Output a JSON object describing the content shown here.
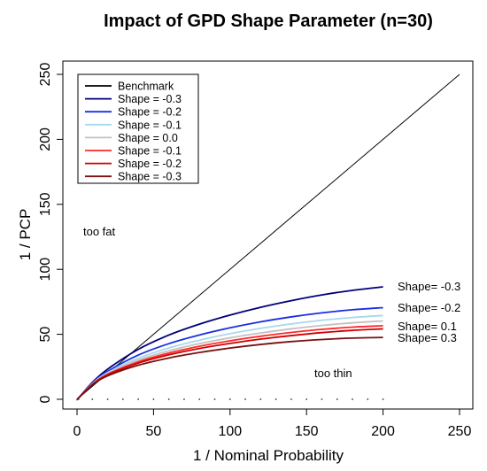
{
  "chart_data": {
    "type": "line",
    "title": "Impact of GPD Shape Parameter (n=30)",
    "xlabel": "1 / Nominal Probability",
    "ylabel": "1 / PCP",
    "xlim": [
      0,
      250
    ],
    "ylim": [
      0,
      250
    ],
    "xticks": [
      0,
      50,
      100,
      150,
      200,
      250
    ],
    "yticks": [
      0,
      50,
      100,
      150,
      200,
      250
    ],
    "grid": false,
    "legend_position": "top-left",
    "x_points": [
      0,
      1,
      10,
      20,
      40,
      60,
      80,
      100,
      120,
      140,
      160,
      180,
      200
    ],
    "benchmark": {
      "name": "Benchmark",
      "color": "#000000",
      "x": [
        0,
        250
      ],
      "values": [
        0,
        250
      ]
    },
    "series": [
      {
        "name": "Shape = -0.3",
        "color": "#00007a",
        "values": [
          0,
          1,
          13.0,
          23.2,
          38.4,
          49.4,
          57.8,
          64.8,
          70.8,
          75.9,
          80.3,
          83.8,
          86.5
        ]
      },
      {
        "name": "Shape = -0.2",
        "color": "#1a2fe0",
        "values": [
          0,
          1,
          12.5,
          21.5,
          34.0,
          42.8,
          49.5,
          55.0,
          59.6,
          63.4,
          66.5,
          68.9,
          70.5
        ]
      },
      {
        "name": "Shape = -0.1",
        "color": "#a8d8ee",
        "values": [
          0,
          1,
          12.0,
          20.5,
          31.5,
          39.5,
          45.5,
          50.5,
          54.6,
          58.0,
          60.8,
          62.9,
          64.5
        ]
      },
      {
        "name": "Shape =  0.0",
        "color": "#c2c2c2",
        "values": [
          0,
          1,
          11.8,
          19.8,
          30.0,
          37.3,
          42.8,
          47.3,
          51.0,
          54.2,
          56.8,
          58.8,
          60.3
        ]
      },
      {
        "name": "Shape = -0.1",
        "color": "#ff2a2a",
        "values": [
          0,
          1,
          11.5,
          19.2,
          28.8,
          35.6,
          40.8,
          45.0,
          48.5,
          51.4,
          53.8,
          55.5,
          56.6
        ]
      },
      {
        "name": "Shape = -0.2",
        "color": "#cc0000",
        "values": [
          0,
          1,
          11.3,
          18.8,
          27.8,
          34.2,
          39.1,
          43.0,
          46.3,
          49.0,
          51.3,
          53.0,
          54.2
        ]
      },
      {
        "name": "Shape = -0.3",
        "color": "#7a1010",
        "values": [
          0,
          1,
          11.0,
          18.0,
          26.2,
          31.8,
          36.0,
          39.4,
          42.2,
          44.4,
          46.0,
          47.1,
          47.6
        ]
      }
    ],
    "marker_points": {
      "x": [
        1,
        10,
        20,
        30,
        40,
        50,
        60,
        70,
        80,
        90,
        100,
        110,
        120,
        130,
        140,
        150,
        160,
        170,
        180,
        190,
        200
      ],
      "y": [
        0,
        0,
        0,
        0,
        0,
        0,
        0,
        0,
        0,
        0,
        0,
        0,
        0,
        0,
        0,
        0,
        0,
        0,
        0,
        0,
        0
      ]
    },
    "annotations": {
      "too_fat": "too fat",
      "too_thin": "too thin",
      "shape_labels": [
        "Shape= -0.3",
        "Shape= -0.2",
        "Shape= 0.1",
        "Shape= 0.3"
      ]
    }
  }
}
